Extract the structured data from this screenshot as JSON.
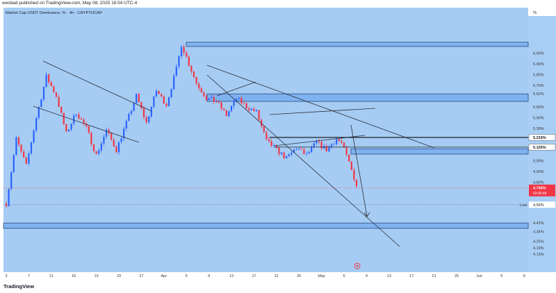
{
  "header": {
    "publisher_line": "wesbad published on TradingView.com, May 08, 2025 16:54 UTC-4"
  },
  "chart_title": "Market Cap USDT Dominance, % · 4h · CRYPTOCAP",
  "footer": {
    "brand": "TradingView"
  },
  "colors": {
    "bg": "#a6ccf4",
    "up": "#2962ff",
    "down": "#f23645",
    "zone": "#7fb2f0",
    "line": "#2a2e39"
  },
  "chart_data": {
    "type": "candlestick",
    "title": "Market Cap USDT Dominance, % · 4h · CRYPTOCAP",
    "y_unit": "%",
    "y_ticks": [
      "6.00%",
      "5.90%",
      "5.80%",
      "5.70%",
      "5.62%",
      "5.50%",
      "5.40%",
      "5.30%",
      "5.12%",
      "5.00%",
      "4.90%",
      "4.80%",
      "4.70%",
      "4.59%",
      "4.42%",
      "4.34%",
      "4.25%",
      "4.19%",
      "4.13%"
    ],
    "x_ticks": [
      "3",
      "7",
      "11",
      "15",
      "19",
      "23",
      "27",
      "Apr",
      "5",
      "9",
      "13",
      "17",
      "21",
      "25",
      "May",
      "5",
      "9",
      "13",
      "17",
      "21",
      "25",
      "Jun",
      "5",
      "9"
    ],
    "price_labels": [
      {
        "text": "5.215%",
        "value": 5.215
      },
      {
        "text": "5.125%",
        "value": 5.125
      },
      {
        "text": "4.745%",
        "value": 4.745
      },
      {
        "text": "03:05:48"
      }
    ],
    "low_label": {
      "text": "Low",
      "value_text": "4.59%"
    },
    "current_price": 4.745,
    "zones": [
      {
        "from": 6.06,
        "to": 6.1
      },
      {
        "from": 5.55,
        "to": 5.62
      },
      {
        "from": 5.06,
        "to": 5.11
      },
      {
        "from": 4.37,
        "to": 4.42
      }
    ],
    "path_keypoints": [
      [
        0,
        4.6
      ],
      [
        4,
        5.2
      ],
      [
        8,
        4.95
      ],
      [
        12,
        5.4
      ],
      [
        16,
        5.78
      ],
      [
        20,
        5.6
      ],
      [
        24,
        5.25
      ],
      [
        28,
        5.45
      ],
      [
        32,
        5.3
      ],
      [
        36,
        5.05
      ],
      [
        40,
        5.28
      ],
      [
        44,
        5.1
      ],
      [
        48,
        5.35
      ],
      [
        52,
        5.6
      ],
      [
        56,
        5.35
      ],
      [
        60,
        5.65
      ],
      [
        64,
        5.52
      ],
      [
        68,
        5.85
      ],
      [
        70,
        6.08
      ],
      [
        73,
        5.9
      ],
      [
        76,
        5.72
      ],
      [
        80,
        5.58
      ],
      [
        84,
        5.55
      ],
      [
        88,
        5.42
      ],
      [
        92,
        5.58
      ],
      [
        96,
        5.5
      ],
      [
        100,
        5.45
      ],
      [
        104,
        5.18
      ],
      [
        108,
        5.1
      ],
      [
        112,
        5.02
      ],
      [
        116,
        5.12
      ],
      [
        120,
        5.05
      ],
      [
        124,
        5.17
      ],
      [
        128,
        5.1
      ],
      [
        132,
        5.2
      ],
      [
        134,
        5.16
      ],
      [
        137,
        4.98
      ],
      [
        140,
        4.77
      ]
    ]
  }
}
